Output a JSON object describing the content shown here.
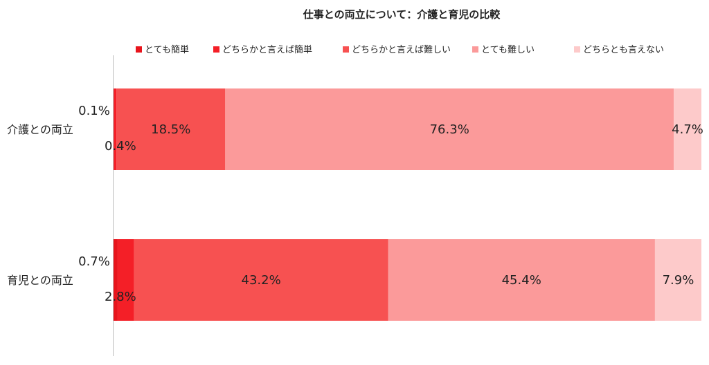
{
  "chart_data": {
    "type": "bar",
    "orientation": "horizontal",
    "stacked": true,
    "title": "仕事との両立について：介護と育児の比較",
    "categories": [
      "介護との両立",
      "育児との両立"
    ],
    "series": [
      {
        "name": "とても簡単",
        "values": [
          0.1,
          0.7
        ],
        "labels": [
          "0.1%",
          "0.7%"
        ],
        "color": "#e8141c"
      },
      {
        "name": "どちらかと言えば簡単",
        "values": [
          0.4,
          2.8
        ],
        "labels": [
          "0.4%",
          "2.8%"
        ],
        "color": "#f41f27"
      },
      {
        "name": "どちらかと言えば難しい",
        "values": [
          18.5,
          43.2
        ],
        "labels": [
          "18.5%",
          "43.2%"
        ],
        "color": "#f75151"
      },
      {
        "name": "とても難しい",
        "values": [
          76.3,
          45.4
        ],
        "labels": [
          "76.3%",
          "45.4%"
        ],
        "color": "#fb9a9a"
      },
      {
        "name": "どちらとも言えない",
        "values": [
          4.7,
          7.9
        ],
        "labels": [
          "4.7%",
          "7.9%"
        ],
        "color": "#fdcaca"
      }
    ],
    "xlim": [
      0,
      100
    ],
    "legend_position": "top",
    "grid": false
  }
}
